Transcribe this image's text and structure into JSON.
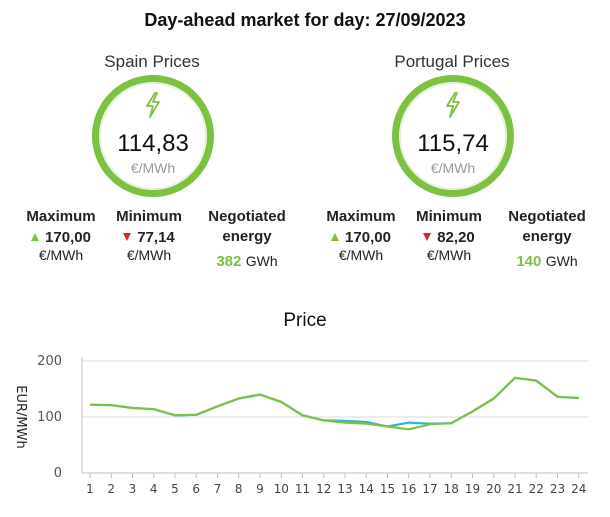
{
  "title": "Day-ahead market for day: 27/09/2023",
  "spain": {
    "title": "Spain Prices",
    "price": "114,83",
    "unit": "€/MWh",
    "max_label": "Maximum",
    "max_value": "170,00",
    "max_unit": "€/MWh",
    "min_label": "Minimum",
    "min_value": "77,14",
    "min_unit": "€/MWh",
    "neg_label_1": "Negotiated",
    "neg_label_2": "energy",
    "neg_value": "382",
    "neg_unit": "GWh"
  },
  "portugal": {
    "title": "Portugal Prices",
    "price": "115,74",
    "unit": "€/MWh",
    "max_label": "Maximum",
    "max_value": "170,00",
    "max_unit": "€/MWh",
    "min_label": "Minimum",
    "min_value": "82,20",
    "min_unit": "€/MWh",
    "neg_label_1": "Negotiated",
    "neg_label_2": "energy",
    "neg_value": "140",
    "neg_unit": "GWh"
  },
  "colors": {
    "accent_green": "#7cc142",
    "down_red": "#e0202a",
    "spain_line": "#29b6d8",
    "portugal_line": "#7cc142"
  },
  "icons": {
    "bolt": "lightning-bolt-icon"
  },
  "chart_data": {
    "type": "line",
    "title": "Price",
    "ylabel": "EUR/MWh",
    "xlabel": "",
    "x": [
      1,
      2,
      3,
      4,
      5,
      6,
      7,
      8,
      9,
      10,
      11,
      12,
      13,
      14,
      15,
      16,
      17,
      18,
      19,
      20,
      21,
      22,
      23,
      24
    ],
    "ylim": [
      0,
      200
    ],
    "yticks": [
      0,
      100,
      200
    ],
    "grid": "horizontal",
    "series": [
      {
        "values": [
          122,
          121,
          116,
          114,
          103,
          104,
          119,
          133,
          140,
          127,
          103,
          94,
          93,
          91,
          83,
          90,
          88,
          89,
          110,
          133,
          170,
          165,
          136,
          134
        ]
      },
      {
        "values": [
          122,
          121,
          116,
          114,
          103,
          104,
          119,
          133,
          140,
          127,
          103,
          94,
          90,
          88,
          83,
          78,
          87,
          89,
          110,
          133,
          170,
          165,
          136,
          134
        ]
      }
    ]
  }
}
